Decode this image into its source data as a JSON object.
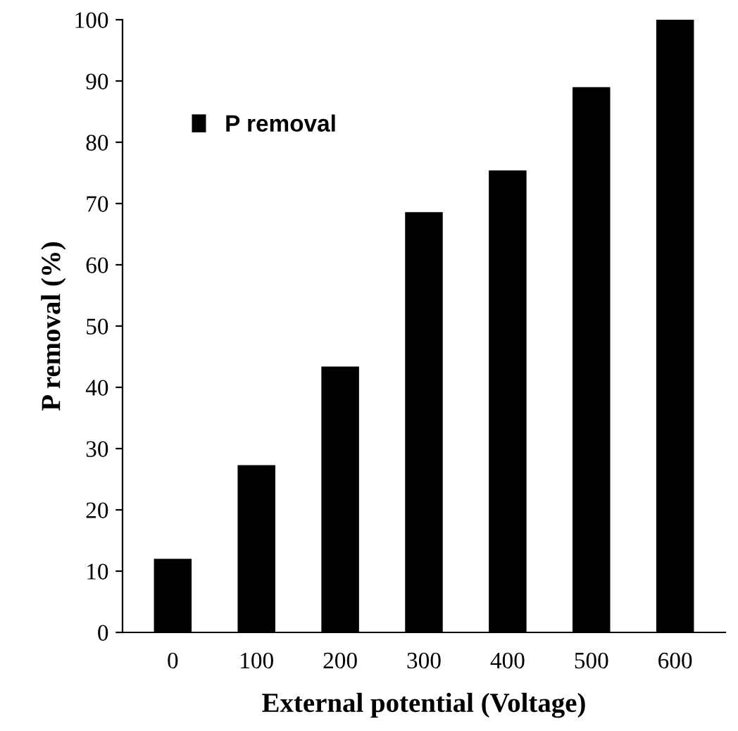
{
  "chart_data": {
    "type": "bar",
    "xlabel": "External potential (Voltage)",
    "ylabel": "P removal (%)",
    "categories": [
      "0",
      "100",
      "200",
      "300",
      "400",
      "500",
      "600"
    ],
    "series": [
      {
        "name": "P removal",
        "color": "#000000",
        "values": [
          12,
          27.3,
          43.4,
          68.6,
          75.4,
          89,
          100
        ]
      }
    ],
    "ylim": [
      0,
      100
    ],
    "yticks": [
      0,
      10,
      20,
      30,
      40,
      50,
      60,
      70,
      80,
      90,
      100
    ],
    "grid": false,
    "legend": "top left"
  }
}
